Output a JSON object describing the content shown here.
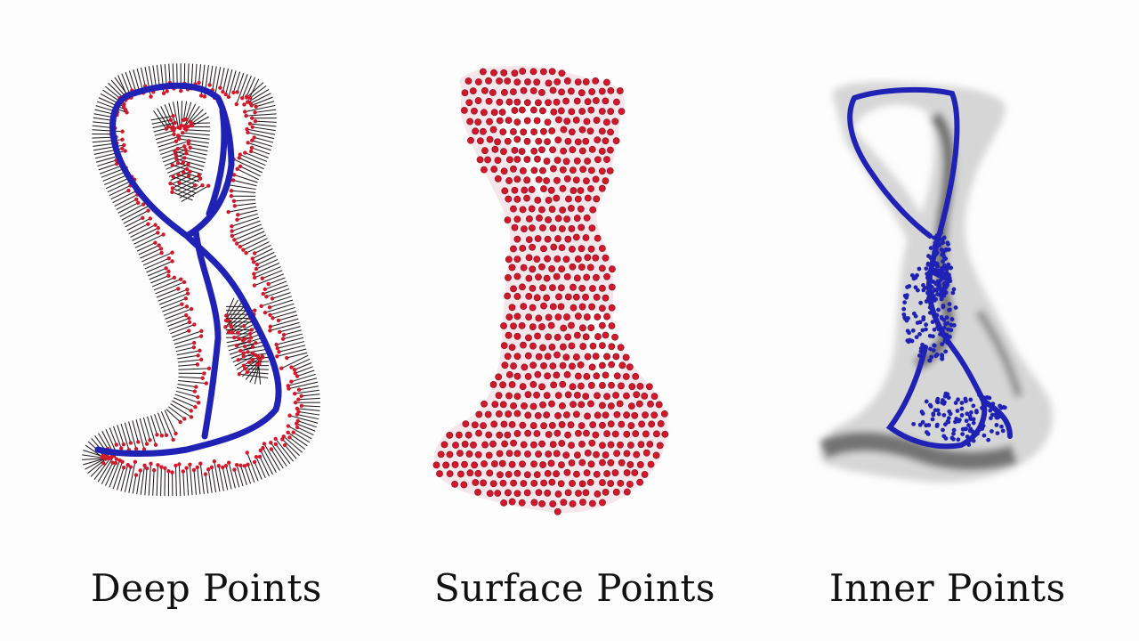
{
  "captions": {
    "deep": "Deep Points",
    "surface": "Surface Points",
    "inner": "Inner Points"
  },
  "colors": {
    "skeleton": "#1f22b4",
    "surface_dot": "#d4182b",
    "spike": "#1a1418",
    "shadow": "#2a2a2a",
    "background": "#fdfdfd"
  }
}
